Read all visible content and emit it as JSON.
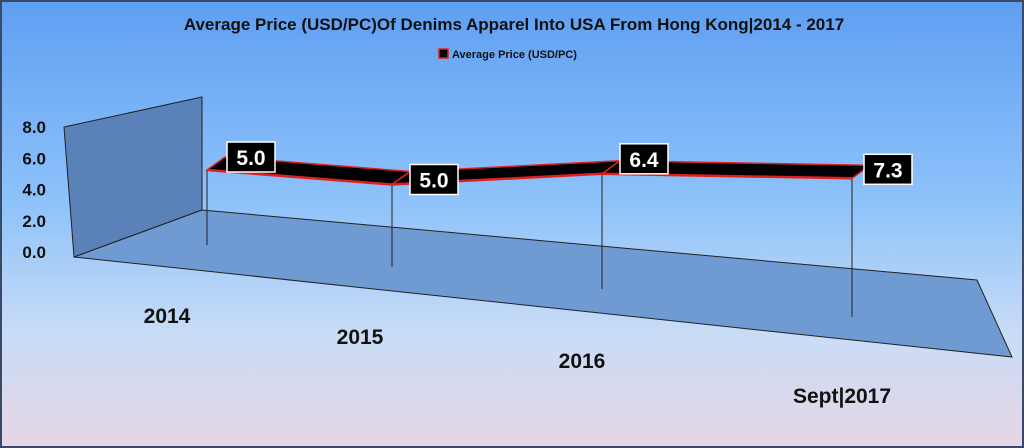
{
  "chart_data": {
    "type": "line",
    "style": "3d-ribbon",
    "title": "Average Price (USD/PC)Of Denims Apparel Into USA From Hong Kong|2014 - 2017",
    "legend": {
      "position": "top",
      "entries": [
        "Average Price (USD/PC)"
      ]
    },
    "categories": [
      "2014",
      "2015",
      "2016",
      "Sept|2017"
    ],
    "series": [
      {
        "name": "Average Price (USD/PC)",
        "values": [
          5.0,
          5.0,
          6.4,
          7.3
        ],
        "color": "#000000",
        "edge_color": "#e02020"
      }
    ],
    "data_labels": [
      "5.0",
      "5.0",
      "6.4",
      "7.3"
    ],
    "yticks": [
      "0.0",
      "2.0",
      "4.0",
      "6.0",
      "8.0"
    ],
    "ylim": [
      0,
      8
    ],
    "grid": false
  }
}
